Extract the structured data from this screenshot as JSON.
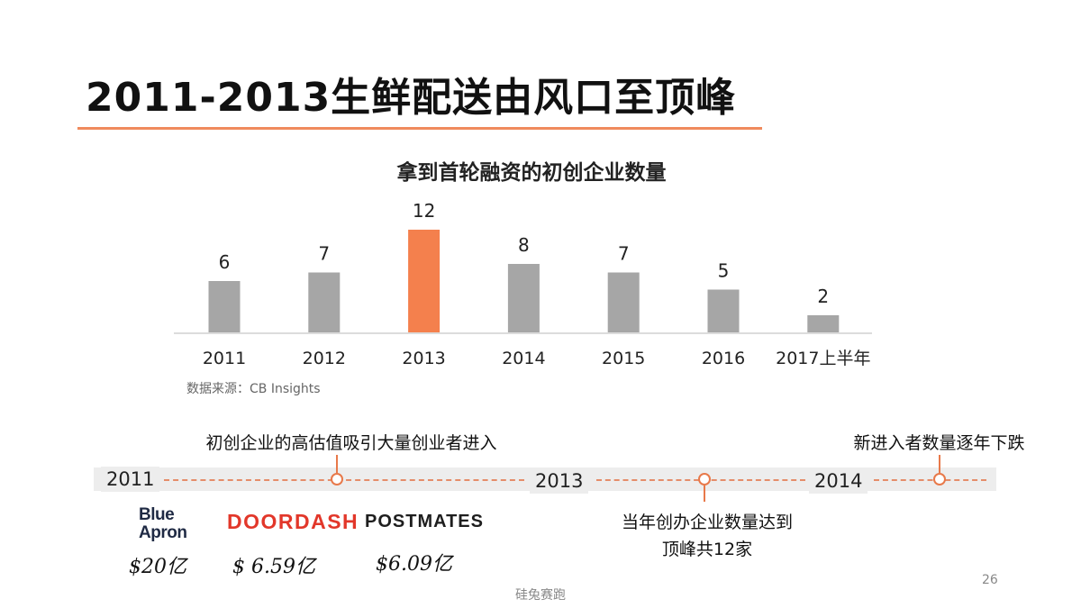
{
  "slide": {
    "title": "2011-2013生鲜配送由风口至顶峰",
    "page_number": "26",
    "footer": "硅兔赛跑"
  },
  "chart_data": {
    "type": "bar",
    "title": "拿到首轮融资的初创企业数量",
    "categories": [
      "2011",
      "2012",
      "2013",
      "2014",
      "2015",
      "2016",
      "2017上半年"
    ],
    "values": [
      6,
      7,
      12,
      8,
      7,
      5,
      2
    ],
    "data_labels": [
      "6",
      "7",
      "12",
      "8",
      "7",
      "5",
      "2"
    ],
    "highlight_index": 2,
    "colors": {
      "bar": "#a6a6a6",
      "highlight": "#f4804d",
      "axis": "#d0d0d0"
    },
    "ylim": [
      0,
      12
    ],
    "grid": false,
    "legend": "none",
    "source": "数据来源：CB Insights"
  },
  "timeline": {
    "years": [
      "2011",
      "2013",
      "2014"
    ],
    "notes": {
      "above_1": "初创企业的高估值吸引大量创业者进入",
      "below_2": "当年创办企业数量达到",
      "below_2_line2": "顶峰共12家",
      "above_3": "新进入者数量逐年下跌"
    },
    "colors": {
      "accent": "#e8794a",
      "band": "#ededed"
    }
  },
  "companies": [
    {
      "logo": "Blue Apron",
      "logo_line1": "Blue",
      "logo_line2": "Apron",
      "valuation": "$20亿"
    },
    {
      "logo": "DOORDASH",
      "valuation": "$ 6.59亿"
    },
    {
      "logo": "POSTMATES",
      "valuation": "$6.09亿"
    }
  ]
}
